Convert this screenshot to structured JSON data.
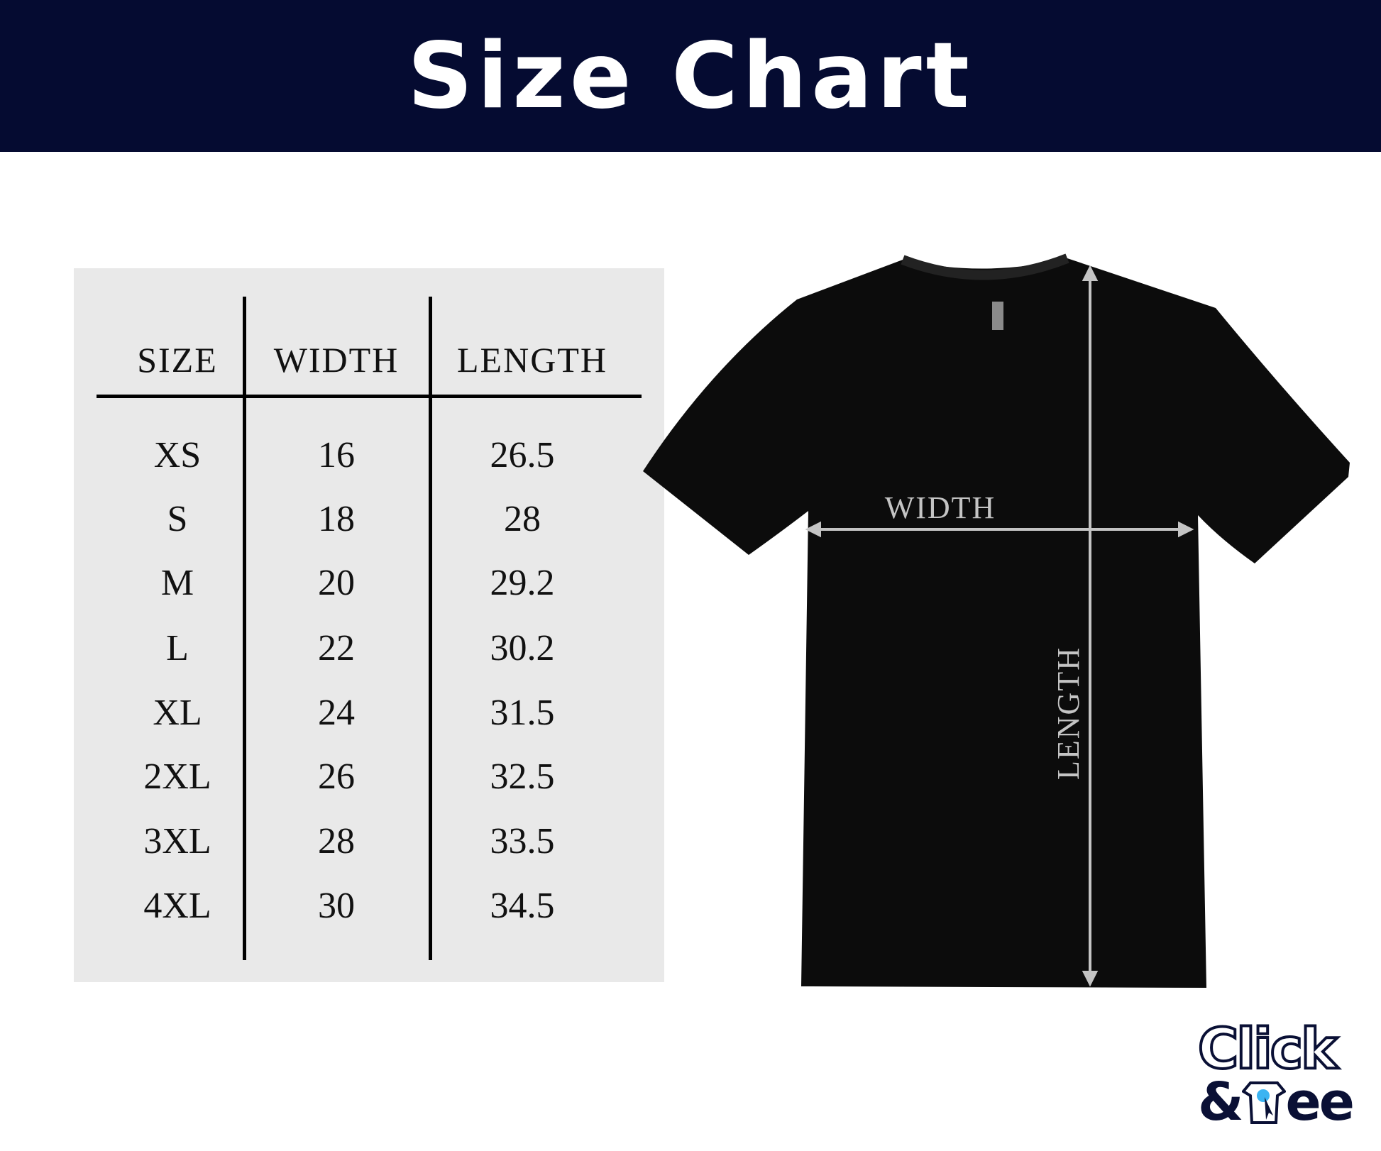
{
  "header": {
    "title": "Size Chart",
    "background": "#050b31"
  },
  "table": {
    "columns": [
      "SIZE",
      "WIDTH",
      "LENGTH"
    ],
    "rows": [
      [
        "XS",
        "16",
        "26.5"
      ],
      [
        "S",
        "18",
        "28"
      ],
      [
        "M",
        "20",
        "29.2"
      ],
      [
        "L",
        "22",
        "30.2"
      ],
      [
        "XL",
        "24",
        "31.5"
      ],
      [
        "2XL",
        "26",
        "32.5"
      ],
      [
        "3XL",
        "28",
        "33.5"
      ],
      [
        "4XL",
        "30",
        "34.5"
      ]
    ]
  },
  "diagram": {
    "width_label": "WIDTH",
    "length_label": "LENGTH",
    "shirt_color": "#0c0c0c",
    "arrow_color": "#c4c4c4"
  },
  "logo": {
    "line1": "Click",
    "line2_prefix": "&",
    "line2_suffix": "ee",
    "accent": "#3bb4f2"
  }
}
